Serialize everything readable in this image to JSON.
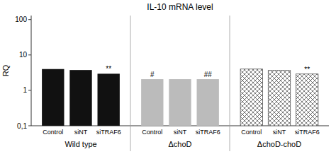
{
  "chart_data": {
    "type": "bar",
    "title": "IL-10 mRNA level",
    "y_label": "RQ",
    "categories": [
      "Control",
      "siNT",
      "siTRAF6"
    ],
    "series": [
      {
        "name": "Wild type",
        "color": "#111111",
        "values": [
          4.0,
          3.75,
          2.95
        ],
        "annotations": [
          null,
          null,
          "**"
        ]
      },
      {
        "name": "ΔchoD",
        "color": "#bbbbbb",
        "values": [
          2.07,
          2.07,
          2.07
        ],
        "annotations": [
          "#",
          null,
          "##"
        ]
      },
      {
        "name": "ΔchoD-choD",
        "color": "#555555",
        "values": [
          4.0,
          3.65,
          2.9
        ],
        "annotations": [
          null,
          null,
          "**"
        ]
      }
    ],
    "log": "y",
    "ylim": [
      0.1,
      130
    ],
    "yticks": [
      {
        "value": 0.1,
        "label": "0,1"
      },
      1,
      10,
      100
    ],
    "grid": false
  }
}
